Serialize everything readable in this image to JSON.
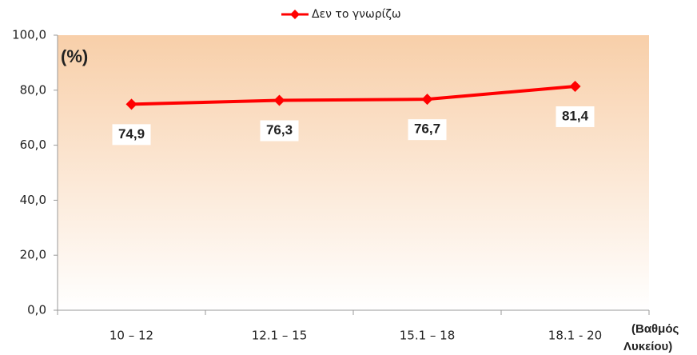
{
  "chart_data": {
    "type": "line",
    "categories": [
      "10 – 12",
      "12.1 – 15",
      "15.1 – 18",
      "18.1 - 20"
    ],
    "series": [
      {
        "name": "Δεν το γνωρίζω",
        "color": "#ff0000",
        "values": [
          74.9,
          76.3,
          76.7,
          81.4
        ],
        "value_labels": [
          "74,9",
          "76,3",
          "76,7",
          "81,4"
        ]
      }
    ],
    "ylabel": "(%)",
    "xlabel": [
      "(Βαθμός",
      "Λυκείου)"
    ],
    "ylim": [
      0,
      100
    ],
    "yticks": [
      {
        "value": 0,
        "label": "0,0"
      },
      {
        "value": 20,
        "label": "20,0"
      },
      {
        "value": 40,
        "label": "40,0"
      },
      {
        "value": 60,
        "label": "60,0"
      },
      {
        "value": 80,
        "label": "80,0"
      },
      {
        "value": 100,
        "label": "100,0"
      }
    ],
    "legend": "top",
    "grid": false
  }
}
